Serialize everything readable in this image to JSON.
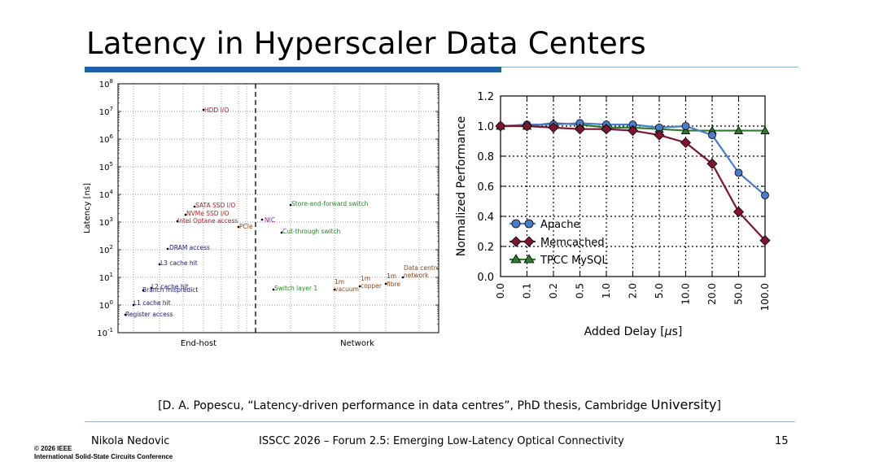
{
  "slide": {
    "title": "Latency in Hyperscaler Data Centers",
    "citation_main": "[D. A. Popescu, “Latency-driven performance in data centres”, PhD thesis, Cambridge ",
    "citation_end": "University",
    "citation_close": "]",
    "footer_author": "Nikola Nedovic",
    "footer_conference": "ISSCC 2026 – Forum 2.5: Emerging Low-Latency Optical Connectivity",
    "footer_page": "15",
    "copyright_line1": "© 2026 IEEE",
    "copyright_line2": "International Solid-State Circuits Conference"
  },
  "colors": {
    "accent_blue": "#1f5fa8",
    "series_red": "#b22222",
    "series_navy": "#191970",
    "series_green": "#228b22",
    "series_magenta": "#cc00cc",
    "series_brown": "#8b4513",
    "apache": "#4a7cc9",
    "memcached": "#7b1530",
    "tpcc": "#2e7d2e"
  },
  "chart_data": [
    {
      "type": "scatter",
      "ylabel": "Latency [ns]",
      "xlabel": "",
      "yscale": "log",
      "ylim_exponent": [
        -1,
        8
      ],
      "ytick_exponents": [
        -1,
        0,
        1,
        2,
        3,
        4,
        5,
        6,
        7,
        8
      ],
      "ytick_base": "10",
      "xgroups": [
        {
          "label": "End-host",
          "range": [
            0,
            4
          ]
        },
        {
          "label": "Network",
          "range": [
            4,
            9
          ]
        }
      ],
      "divider_x": 4,
      "grid": true,
      "points": [
        {
          "label": "HDD I/O",
          "x": 2.4,
          "y": 10000000,
          "color": "red"
        },
        {
          "label": "SATA SSD I/O",
          "x": 2.2,
          "y": 4000,
          "color": "red"
        },
        {
          "label": "NVMe SSD I/O",
          "x": 1.9,
          "y": 2000,
          "color": "red"
        },
        {
          "label": "Intel Optane access",
          "x": 1.7,
          "y": 1000,
          "color": "red"
        },
        {
          "label": "PCIe",
          "x": 3.45,
          "y": 700,
          "color": "brown"
        },
        {
          "label": "NIC",
          "x": 4.2,
          "y": 1300,
          "color": "magenta"
        },
        {
          "label": "Store-and-forward switch",
          "x": 4.95,
          "y": 4000,
          "color": "green"
        },
        {
          "label": "Cut-through switch",
          "x": 4.7,
          "y": 450,
          "color": "green"
        },
        {
          "label": "DRAM access",
          "x": 1.4,
          "y": 100,
          "color": "navy"
        },
        {
          "label": "L3 cache hit",
          "x": 1.15,
          "y": 30,
          "color": "navy"
        },
        {
          "label": "L2 cache hit",
          "x": 0.95,
          "y": 4,
          "color": "navy"
        },
        {
          "label": "Branch mispredict",
          "x": 0.75,
          "y": 3.2,
          "color": "navy"
        },
        {
          "label": "L1 cache hit",
          "x": 0.5,
          "y": 1,
          "color": "navy"
        },
        {
          "label": "Register access",
          "x": 0.2,
          "y": 0.4,
          "color": "navy"
        },
        {
          "label": "Switch layer 1",
          "x": 4.45,
          "y": 3.2,
          "color": "green"
        },
        {
          "label": "1m vacuum",
          "x": 6.2,
          "y": 3.3,
          "color": "brown"
        },
        {
          "label": "1m copper",
          "x": 6.95,
          "y": 4.4,
          "color": "brown"
        },
        {
          "label": "1m fibre",
          "x": 7.6,
          "y": 5,
          "color": "brown"
        },
        {
          "label": "Data centre network",
          "x": 8.2,
          "y": 10,
          "color": "brown"
        }
      ],
      "group_labels": {
        "endhost": "End-host",
        "network": "Network"
      },
      "annotations": {
        "hdd": "HDD I/O",
        "sata": "SATA SSD I/O",
        "nvme": "NVMe SSD I/O",
        "optane": "Intel Optane access",
        "pcie": "PCIe",
        "nic": "NIC",
        "snf": "Store-and-forward switch",
        "ct": "Cut-through switch",
        "dram": "DRAM access",
        "l3": "L3 cache hit",
        "l2": "L2 cache hit",
        "branch": "Branch mispredict",
        "l1": "L1 cache hit",
        "reg": "Register access",
        "sw1": "Switch layer 1",
        "vac1": "1m",
        "vac2": "vacuum",
        "cop1": "1m",
        "cop2": "copper",
        "fib1": "1m",
        "fib2": "fibre",
        "dcn1": "Data centre",
        "dcn2": "network"
      }
    },
    {
      "type": "line",
      "xlabel_prefix": "Added Delay [",
      "xlabel_mu": "μ",
      "xlabel_suffix": "s]",
      "ylabel": "Normalized Performance",
      "categories": [
        "0.0",
        "0.1",
        "0.2",
        "0.5",
        "1.0",
        "2.0",
        "5.0",
        "10.0",
        "20.0",
        "50.0",
        "100.0"
      ],
      "yticks": [
        "0.0",
        "0.2",
        "0.4",
        "0.6",
        "0.8",
        "1.0",
        "1.2"
      ],
      "ylim": [
        0,
        1.2
      ],
      "grid": true,
      "legend_position": "lower-left",
      "series": [
        {
          "name": "Apache",
          "marker": "circle",
          "values": [
            1.0,
            1.01,
            1.01,
            1.02,
            1.01,
            1.01,
            0.99,
            1.0,
            0.94,
            0.69,
            0.54
          ]
        },
        {
          "name": "Memcached",
          "marker": "diamond",
          "values": [
            1.0,
            1.0,
            0.99,
            0.98,
            0.98,
            0.97,
            0.94,
            0.89,
            0.75,
            0.43,
            0.24
          ]
        },
        {
          "name": "TPCC MySQL",
          "marker": "triangle",
          "values": [
            1.0,
            1.0,
            1.02,
            1.01,
            0.99,
            0.99,
            0.98,
            0.97,
            0.97,
            0.97,
            0.97
          ]
        }
      ]
    }
  ]
}
